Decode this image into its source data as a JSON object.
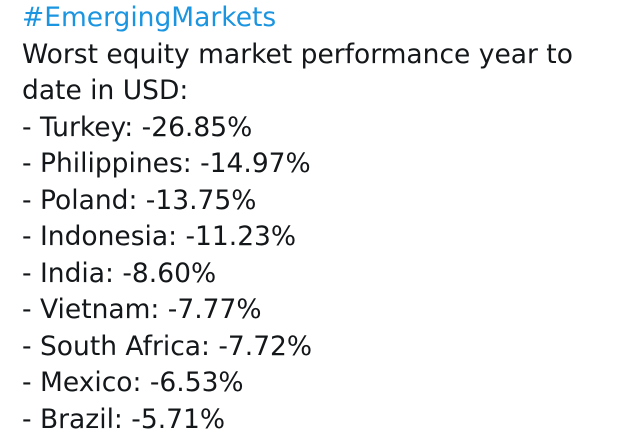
{
  "tweet": {
    "hashtag": "#EmergingMarkets",
    "intro_line1": "Worst equity market performance year to",
    "intro_line2": "date in USD:",
    "items": [
      "- Turkey: -26.85%",
      "- Philippines: -14.97%",
      "- Poland: -13.75%",
      "- Indonesia: -11.23%",
      "- India: -8.60%",
      "- Vietnam: -7.77%",
      "- South Africa: -7.72%",
      "- Mexico: -6.53%",
      "- Brazil: -5.71%"
    ]
  },
  "colors": {
    "hashtag": "#1b95e0",
    "text": "#14171a",
    "background": "#ffffff"
  }
}
